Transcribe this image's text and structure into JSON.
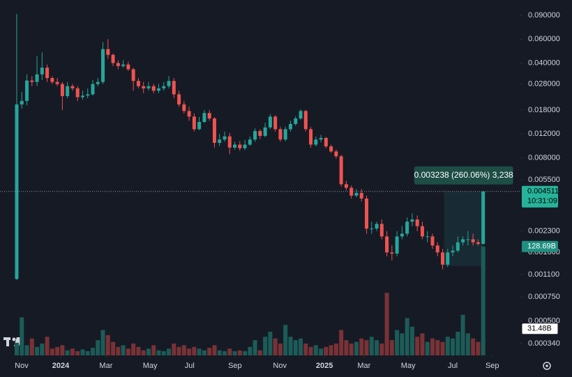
{
  "chart_data": {
    "type": "candlestick",
    "log_scale": true,
    "colors": {
      "up": "#26a69a",
      "down": "#ef5350",
      "volume_up": "#1c5c58",
      "volume_down": "#7a3236"
    },
    "xlim": [
      -3.3,
      99.2
    ],
    "xticks": [
      {
        "value": 0.96,
        "label": "Nov"
      },
      {
        "value": 8.67,
        "label": "2024"
      },
      {
        "value": 17.6,
        "label": "Mar"
      },
      {
        "value": 26.3,
        "label": "May"
      },
      {
        "value": 34.1,
        "label": "Jul"
      },
      {
        "value": 43.05,
        "label": "Sep"
      },
      {
        "value": 51.9,
        "label": "Nov"
      },
      {
        "value": 60.7,
        "label": "2025"
      },
      {
        "value": 68.5,
        "label": "Mar"
      },
      {
        "value": 77.2,
        "label": "May"
      },
      {
        "value": 86.0,
        "label": "Jul"
      },
      {
        "value": 93.8,
        "label": "Sep"
      }
    ],
    "ylim": [
      0.000278,
      0.1168
    ],
    "yticks": [
      {
        "value": 0.09,
        "label": "0.090000"
      },
      {
        "value": 0.06,
        "label": "0.060000"
      },
      {
        "value": 0.04,
        "label": "0.040000"
      },
      {
        "value": 0.028,
        "label": "0.028000"
      },
      {
        "value": 0.018,
        "label": "0.018000"
      },
      {
        "value": 0.012,
        "label": "0.012000"
      },
      {
        "value": 0.008,
        "label": "0.008000"
      },
      {
        "value": 0.0055,
        "label": "0.005500"
      },
      {
        "value": 0.0023,
        "label": "0.002300"
      },
      {
        "value": 0.0016,
        "label": "0.001600"
      },
      {
        "value": 0.0011,
        "label": "0.001100"
      },
      {
        "value": 0.00075,
        "label": "0.000750"
      },
      {
        "value": 0.0005,
        "label": "0.000500"
      },
      {
        "value": 0.00034,
        "label": "0.000340"
      }
    ],
    "open": [
      0.00102,
      0.0198,
      0.021,
      0.0297,
      0.029,
      0.033,
      0.037,
      0.031,
      0.029,
      0.028,
      0.0228,
      0.027,
      0.026,
      0.0224,
      0.023,
      0.0235,
      0.028,
      0.029,
      0.0507,
      0.046,
      0.04,
      0.038,
      0.039,
      0.036,
      0.0295,
      0.027,
      0.026,
      0.027,
      0.025,
      0.026,
      0.027,
      0.0295,
      0.0235,
      0.0198,
      0.0177,
      0.0161,
      0.013,
      0.0147,
      0.0171,
      0.0156,
      0.0103,
      0.0109,
      0.0115,
      0.0095,
      0.01,
      0.0094,
      0.01,
      0.0109,
      0.0126,
      0.0116,
      0.0134,
      0.0161,
      0.013,
      0.0109,
      0.013,
      0.0142,
      0.0156,
      0.0177,
      0.013,
      0.01,
      0.0109,
      0.0112,
      0.0097,
      0.0089,
      0.0082,
      0.0051,
      0.0048,
      0.0042,
      0.0044,
      0.004,
      0.0024,
      0.0024,
      0.0026,
      0.0021,
      0.0016,
      0.00157,
      0.0021,
      0.0022,
      0.0027,
      0.0028,
      0.0025,
      0.0021,
      0.0021,
      0.0018,
      0.0016,
      0.0013,
      0.0016,
      0.00165,
      0.0019,
      0.002,
      0.002,
      0.0019,
      0.00185
    ],
    "high": [
      0.092,
      0.0245,
      0.033,
      0.032,
      0.045,
      0.048,
      0.039,
      0.032,
      0.031,
      0.029,
      0.029,
      0.028,
      0.027,
      0.025,
      0.026,
      0.03,
      0.031,
      0.057,
      0.06,
      0.047,
      0.042,
      0.042,
      0.041,
      0.037,
      0.031,
      0.029,
      0.029,
      0.028,
      0.028,
      0.029,
      0.032,
      0.031,
      0.025,
      0.021,
      0.019,
      0.017,
      0.016,
      0.018,
      0.018,
      0.016,
      0.012,
      0.0125,
      0.0122,
      0.0105,
      0.0106,
      0.0108,
      0.0115,
      0.0132,
      0.013,
      0.0145,
      0.0168,
      0.0165,
      0.0135,
      0.0136,
      0.015,
      0.0162,
      0.0182,
      0.018,
      0.0135,
      0.0115,
      0.0118,
      0.0114,
      0.01,
      0.0092,
      0.0084,
      0.0054,
      0.005,
      0.0047,
      0.0047,
      0.0042,
      0.0027,
      0.0027,
      0.0028,
      0.0023,
      0.0018,
      0.0023,
      0.0025,
      0.0029,
      0.0031,
      0.003,
      0.0027,
      0.0023,
      0.0022,
      0.0019,
      0.0017,
      0.0017,
      0.0018,
      0.0021,
      0.0021,
      0.0023,
      0.0022,
      0.002,
      0.004511
    ],
    "low": [
      0.001,
      0.0185,
      0.0195,
      0.027,
      0.027,
      0.03,
      0.029,
      0.028,
      0.027,
      0.018,
      0.022,
      0.025,
      0.021,
      0.0215,
      0.022,
      0.023,
      0.027,
      0.028,
      0.043,
      0.038,
      0.036,
      0.037,
      0.035,
      0.025,
      0.026,
      0.024,
      0.025,
      0.024,
      0.024,
      0.025,
      0.026,
      0.022,
      0.019,
      0.017,
      0.015,
      0.0125,
      0.0128,
      0.0145,
      0.015,
      0.0095,
      0.0098,
      0.0105,
      0.0085,
      0.0092,
      0.009,
      0.0091,
      0.0098,
      0.0105,
      0.011,
      0.0113,
      0.013,
      0.0125,
      0.0105,
      0.0106,
      0.0125,
      0.0138,
      0.0152,
      0.0125,
      0.0095,
      0.0097,
      0.0104,
      0.0094,
      0.0087,
      0.0079,
      0.0049,
      0.0046,
      0.004,
      0.0041,
      0.0038,
      0.0022,
      0.0022,
      0.0023,
      0.002,
      0.0015,
      0.0014,
      0.0015,
      0.002,
      0.0021,
      0.0025,
      0.0023,
      0.002,
      0.0019,
      0.0017,
      0.0015,
      0.0012,
      0.00125,
      0.0015,
      0.0016,
      0.0018,
      0.0018,
      0.0018,
      0.0018,
      0.00183
    ],
    "close": [
      0.0198,
      0.021,
      0.0297,
      0.029,
      0.033,
      0.037,
      0.031,
      0.029,
      0.028,
      0.0228,
      0.027,
      0.026,
      0.0224,
      0.023,
      0.0235,
      0.028,
      0.029,
      0.0507,
      0.046,
      0.04,
      0.038,
      0.039,
      0.036,
      0.0295,
      0.027,
      0.026,
      0.027,
      0.025,
      0.026,
      0.027,
      0.0295,
      0.0235,
      0.0198,
      0.0177,
      0.0161,
      0.013,
      0.0147,
      0.0171,
      0.0156,
      0.0103,
      0.0109,
      0.0115,
      0.0095,
      0.01,
      0.0094,
      0.01,
      0.0109,
      0.0126,
      0.0116,
      0.0134,
      0.0161,
      0.013,
      0.0109,
      0.013,
      0.0142,
      0.0156,
      0.0177,
      0.013,
      0.01,
      0.0109,
      0.0112,
      0.0097,
      0.0089,
      0.0082,
      0.0051,
      0.0048,
      0.0042,
      0.0044,
      0.004,
      0.0024,
      0.0024,
      0.0026,
      0.0021,
      0.0016,
      0.00157,
      0.0021,
      0.0022,
      0.0027,
      0.0028,
      0.0025,
      0.0021,
      0.0021,
      0.0018,
      0.0016,
      0.0013,
      0.0016,
      0.00165,
      0.0019,
      0.002,
      0.002,
      0.0019,
      0.00185,
      0.004511
    ],
    "volume": [
      15,
      45,
      12,
      20,
      10,
      14,
      22,
      8,
      10,
      12,
      6,
      8,
      5,
      7,
      5,
      9,
      18,
      30,
      24,
      16,
      10,
      12,
      8,
      14,
      10,
      6,
      8,
      12,
      6,
      5,
      8,
      14,
      10,
      12,
      8,
      10,
      8,
      6,
      9,
      12,
      6,
      5,
      8,
      5,
      6,
      5,
      10,
      18,
      6,
      22,
      28,
      20,
      14,
      36,
      22,
      18,
      20,
      14,
      10,
      12,
      8,
      10,
      12,
      14,
      30,
      18,
      14,
      16,
      20,
      18,
      22,
      18,
      14,
      74,
      18,
      30,
      26,
      44,
      34,
      22,
      26,
      16,
      20,
      18,
      16,
      22,
      20,
      28,
      48,
      26,
      20,
      16,
      128.69
    ],
    "volume_ylim": [
      0,
      420
    ],
    "volume_label": "128.69B",
    "volume_ma": {
      "value": 31.48,
      "label": "31.48B"
    },
    "last_price": {
      "value": 0.004511,
      "label": "0.004511"
    },
    "countdown": "10:31:09",
    "measure": {
      "label": "0.003238 (260.06%) 3,238",
      "low": 0.001273,
      "x_range": [
        84.3,
        92
      ]
    }
  }
}
